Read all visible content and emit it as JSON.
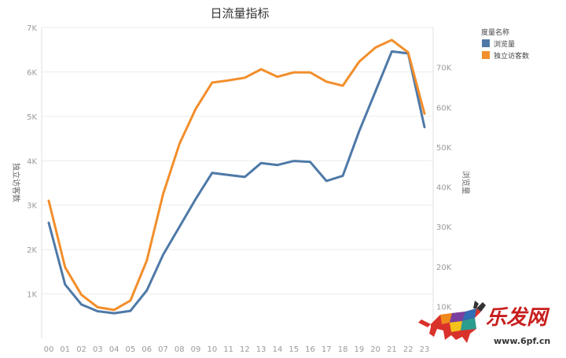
{
  "chart_data": {
    "type": "line",
    "title": "日流量指标",
    "x": [
      "00",
      "01",
      "02",
      "03",
      "04",
      "05",
      "06",
      "07",
      "08",
      "09",
      "10",
      "11",
      "12",
      "13",
      "14",
      "15",
      "16",
      "17",
      "18",
      "19",
      "20",
      "21",
      "22",
      "23"
    ],
    "left_axis": {
      "label": "独立访客数",
      "ylim": [
        0,
        7000
      ],
      "ticks": [
        1000,
        2000,
        3000,
        4000,
        5000,
        6000,
        7000
      ],
      "tick_labels": [
        "1K",
        "2K",
        "3K",
        "4K",
        "5K",
        "6K",
        "7K"
      ]
    },
    "right_axis": {
      "label": "浏览量",
      "ylim": [
        2000,
        80000
      ],
      "ticks": [
        10000,
        20000,
        30000,
        40000,
        50000,
        60000,
        70000
      ],
      "tick_labels": [
        "10K",
        "20K",
        "30K",
        "40K",
        "50K",
        "60K",
        "70K"
      ]
    },
    "legend": {
      "title": "度量名称",
      "position": "top-right"
    },
    "series": [
      {
        "name": "浏览量",
        "axis": "right",
        "color": "#4e79a7",
        "values": [
          31000,
          15500,
          10500,
          8800,
          8300,
          8900,
          14000,
          23000,
          30000,
          37000,
          43500,
          43000,
          42500,
          46000,
          45500,
          46500,
          46300,
          41500,
          42800,
          54000,
          64000,
          74000,
          73500,
          55000
        ]
      },
      {
        "name": "独立访客数",
        "axis": "left",
        "color": "#f28e2b",
        "values": [
          3100,
          1600,
          980,
          700,
          640,
          850,
          1750,
          3250,
          4380,
          5170,
          5760,
          5810,
          5870,
          6060,
          5890,
          5990,
          5990,
          5780,
          5690,
          6230,
          6550,
          6720,
          6440,
          5060
        ]
      }
    ]
  },
  "watermark": {
    "brand_text": "乐发网",
    "url_text": "www.6pf.cn",
    "brand_color": "#c81e1e"
  }
}
